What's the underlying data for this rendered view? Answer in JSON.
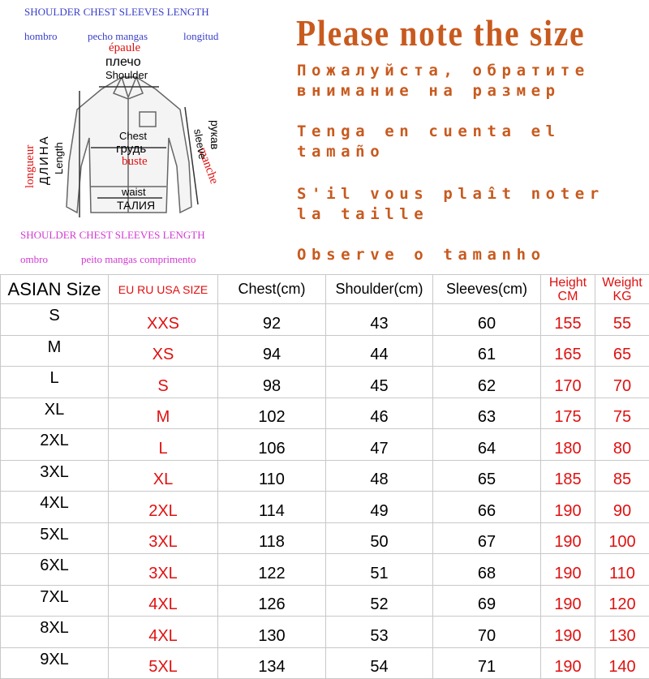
{
  "diagram": {
    "header_en": "SHOULDER CHEST SLEEVES LENGTH",
    "header_es": [
      "hombro",
      "pecho mangas",
      "longitud"
    ],
    "shoulder": [
      "épaule",
      "плечо",
      "Shoulder"
    ],
    "chest": [
      "Chest",
      "грудь",
      "buste"
    ],
    "waist": [
      "waist",
      "ТАЛИЯ"
    ],
    "sleeve": [
      "manche",
      "рукав",
      "sleeve"
    ],
    "length": [
      "longueur",
      "ДЛИНА",
      "Length"
    ],
    "footer_en": "SHOULDER CHEST SLEEVES LENGTH",
    "footer_pt": [
      "ombro",
      "peito mangas comprimento"
    ]
  },
  "notes": {
    "title": "Please note the size",
    "lines": [
      [
        "Пожалуйста, обратите",
        "внимание на размер"
      ],
      [
        "Tenga en cuenta el",
        "tamaño"
      ],
      [
        "S'il vous plaît noter",
        "la taille"
      ],
      [
        "Observe o tamanho"
      ]
    ]
  },
  "table": {
    "header": [
      "ASIAN Size",
      "EU RU USA SIZE",
      "Chest(cm)",
      "Shoulder(cm)",
      "Sleeves(cm)",
      [
        "Height",
        "CM"
      ],
      [
        "Weight",
        "KG"
      ]
    ],
    "rows": [
      [
        "S",
        "XXS",
        92,
        43,
        60,
        155,
        55
      ],
      [
        "M",
        "XS",
        94,
        44,
        61,
        165,
        65
      ],
      [
        "L",
        "S",
        98,
        45,
        62,
        170,
        70
      ],
      [
        "XL",
        "M",
        102,
        46,
        63,
        175,
        75
      ],
      [
        "2XL",
        "L",
        106,
        47,
        64,
        180,
        80
      ],
      [
        "3XL",
        "XL",
        110,
        48,
        65,
        185,
        85
      ],
      [
        "4XL",
        "2XL",
        114,
        49,
        66,
        190,
        90
      ],
      [
        "5XL",
        "3XL",
        118,
        50,
        67,
        190,
        100
      ],
      [
        "6XL",
        "3XL",
        122,
        51,
        68,
        190,
        110
      ],
      [
        "7XL",
        "4XL",
        126,
        52,
        69,
        190,
        120
      ],
      [
        "8XL",
        "4XL",
        130,
        53,
        70,
        190,
        130
      ],
      [
        "9XL",
        "5XL",
        134,
        54,
        71,
        190,
        140
      ]
    ]
  }
}
